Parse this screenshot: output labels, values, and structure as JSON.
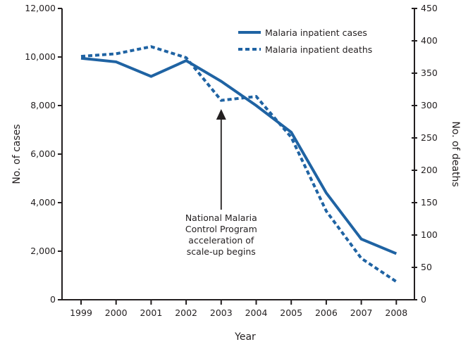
{
  "chart_data": {
    "type": "line",
    "title": "",
    "xlabel": "Year",
    "ylabel": "No. of cases",
    "y2label": "No. of deaths",
    "x": [
      "1999",
      "2000",
      "2001",
      "2002",
      "2003",
      "2004",
      "2005",
      "2006",
      "2007",
      "2008"
    ],
    "ylim": [
      0,
      12000
    ],
    "y2lim": [
      0,
      450
    ],
    "yticks": [
      "0",
      "2,000",
      "4,000",
      "6,000",
      "8,000",
      "10,000",
      "12,000"
    ],
    "ytick_values": [
      0,
      2000,
      4000,
      6000,
      8000,
      10000,
      12000
    ],
    "y2ticks": [
      "0",
      "50",
      "100",
      "150",
      "200",
      "250",
      "300",
      "350",
      "400",
      "450"
    ],
    "y2tick_values": [
      0,
      50,
      100,
      150,
      200,
      250,
      300,
      350,
      400,
      450
    ],
    "grid": false,
    "legend_position": "top-right",
    "color": "#1f63a3",
    "series": [
      {
        "name": "Malaria inpatient cases",
        "axis": "left",
        "style": "solid",
        "values": [
          9950,
          9800,
          9200,
          9850,
          9000,
          8000,
          6900,
          4400,
          2500,
          1900
        ]
      },
      {
        "name": "Malaria inpatient deaths",
        "axis": "right",
        "style": "dashed",
        "values": [
          376,
          380,
          391,
          374,
          308,
          314,
          251,
          137,
          64,
          28
        ]
      }
    ],
    "annotation": {
      "x": "2003",
      "lines": [
        "National Malaria",
        "Control Program",
        "acceleration of",
        "scale-up begins"
      ]
    }
  }
}
